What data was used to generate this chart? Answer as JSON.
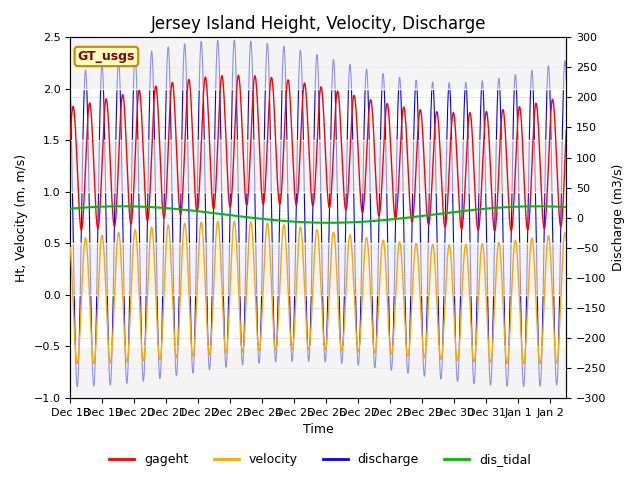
{
  "title": "Jersey Island Height, Velocity, Discharge",
  "xlabel": "Time",
  "ylabel_left": "Ht, Velocity (m, m/s)",
  "ylabel_right": "Discharge (m3/s)",
  "ylim_left": [
    -1.0,
    2.5
  ],
  "ylim_right": [
    -300,
    300
  ],
  "xlim_start": 0,
  "xlim_end": 15.5,
  "xtick_labels": [
    "Dec 18",
    "Dec 19",
    "Dec 20",
    "Dec 21",
    "Dec 22",
    "Dec 23",
    "Dec 24",
    "Dec 25",
    "Dec 26",
    "Dec 27",
    "Dec 28",
    "Dec 29",
    "Dec 30",
    "Dec 31",
    "Jan 1",
    "Jan 2"
  ],
  "colors": {
    "gageht": "#ff0000",
    "velocity": "#ffa500",
    "discharge": "#0000ff",
    "dis_tidal": "#00bb00"
  },
  "legend_label": "GT_usgs",
  "legend_box_facecolor": "#ffffc0",
  "legend_box_edgecolor": "#cc8800",
  "background_color": "#ffffff",
  "title_fontsize": 12,
  "axis_fontsize": 9,
  "tick_fontsize": 8,
  "legend_fontsize": 9
}
